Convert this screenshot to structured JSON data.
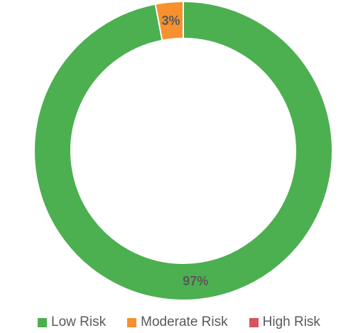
{
  "chart_data": {
    "type": "pie",
    "donut": true,
    "categories": [
      "Low Risk",
      "Moderate Risk",
      "High Risk"
    ],
    "values": [
      97,
      3,
      0
    ],
    "value_labels": [
      "97%",
      "3%",
      ""
    ],
    "colors": [
      "#4CAF50",
      "#F7902F",
      "#D9535F"
    ],
    "legend_position": "bottom",
    "title": ""
  },
  "legend": {
    "items": [
      {
        "label": "Low Risk",
        "color": "#4CAF50"
      },
      {
        "label": "Moderate Risk",
        "color": "#F7902F"
      },
      {
        "label": "High Risk",
        "color": "#D9535F"
      }
    ]
  }
}
